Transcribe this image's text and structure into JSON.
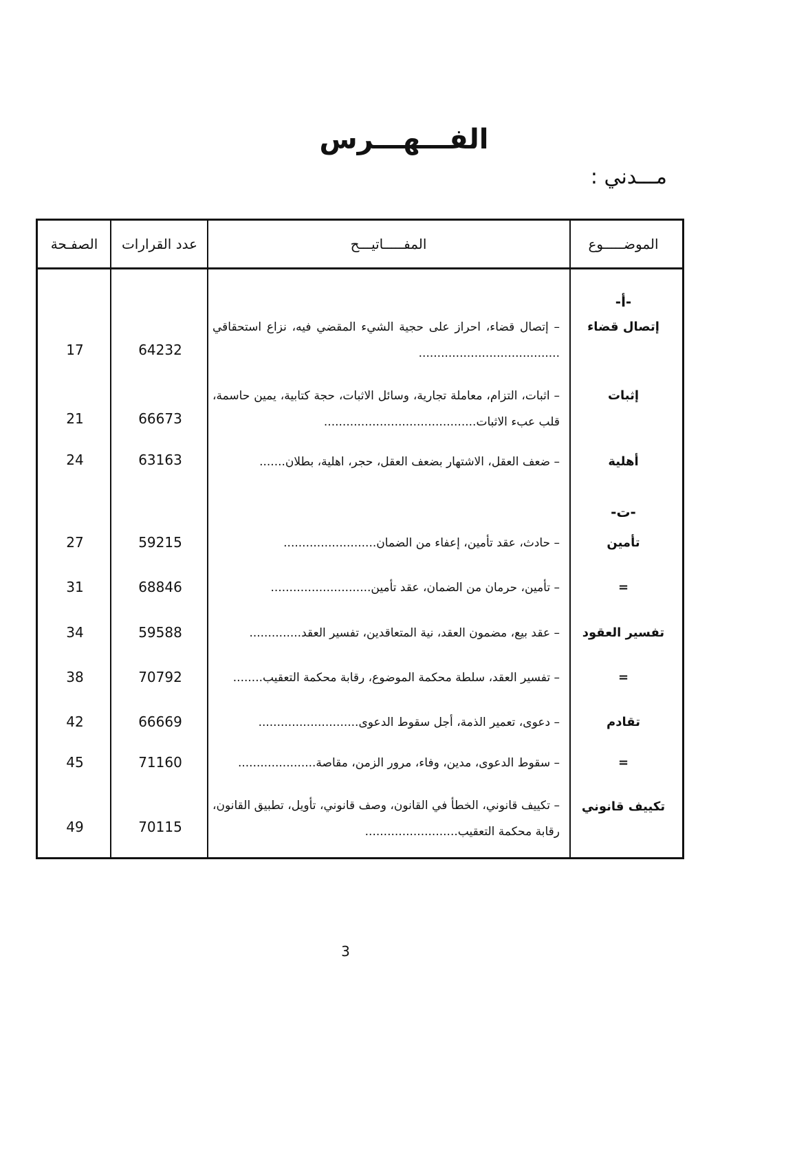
{
  "title": "الفـــهـــرس",
  "section": "مـــدني :",
  "headers": {
    "topic": "الموضـــــوع",
    "keywords": "المفـــــاتيـــح",
    "count": "عدد القرارات",
    "page": "الصفـحة"
  },
  "groups": [
    {
      "letter": "-أ-",
      "rows": [
        {
          "topic": "إتصال قضاء",
          "keywords": "– إتصال قضاء، احراز على حجية الشيء المقضي فيه، نزاع استحقاقي ......................................",
          "count": "64232",
          "page": "17"
        },
        {
          "topic": "إثبات",
          "keywords": "– اثبات، التزام، معاملة تجارية، وسائل الاثبات، حجة كتابية، يمين حاسمة، قلب عبء الاثبات.........................................",
          "count": "66673",
          "page": "21"
        },
        {
          "topic": "أهلية",
          "keywords": "– ضعف العقل، الاشتهار بضعف العقل، حجر، اهلية، بطلان.......",
          "count": "63163",
          "page": "24"
        }
      ]
    },
    {
      "letter": "-ت-",
      "rows": [
        {
          "topic": "تأمين",
          "keywords": "– حادث، عقد تأمين، إعفاء من الضمان.........................",
          "count": "59215",
          "page": "27"
        },
        {
          "topic": "=",
          "keywords": "– تأمين، حرمان من الضمان، عقد تأمين...........................",
          "count": "68846",
          "page": "31"
        },
        {
          "topic": "تفسير العقود",
          "keywords": "– عقد بيع، مضمون العقد، نية المتعاقدين، تفسير العقد..............",
          "count": "59588",
          "page": "34"
        },
        {
          "topic": "=",
          "keywords": "– تفسير العقد، سلطة محكمة الموضوع، رقابة محكمة التعقيب........",
          "count": "70792",
          "page": "38"
        },
        {
          "topic": "تقادم",
          "keywords": "– دعوى، تعمير الذمة، أجل سقوط الدعوى...........................",
          "count": "66669",
          "page": "42"
        },
        {
          "topic": "=",
          "keywords": "– سقوط الدعوى، مدين، وفاء، مرور الزمن، مقاصة.....................",
          "count": "71160",
          "page": "45"
        },
        {
          "topic": "تكييف قانوني",
          "keywords": "– تكييف قانوني، الخطأ في القانون، وصف قانوني، تأويل، تطبيق القانون، رقابة محكمة التعقيب.........................",
          "count": "70115",
          "page": "49"
        }
      ]
    }
  ],
  "page_number": "3"
}
